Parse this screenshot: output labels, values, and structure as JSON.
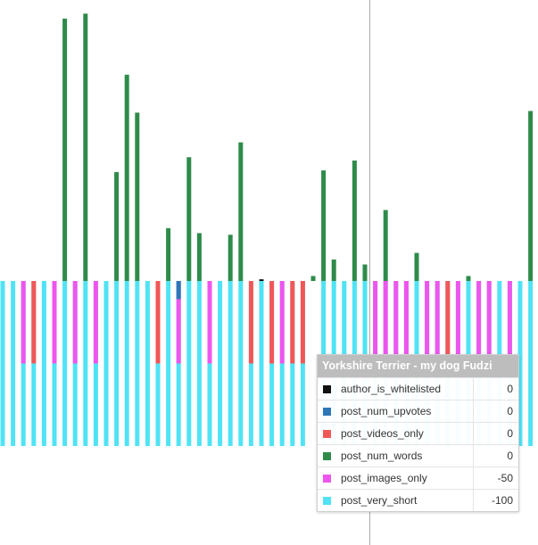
{
  "tooltip": {
    "title": "Yorkshire Terrier - my dog Fudzi",
    "rows": [
      {
        "label": "author_is_whitelisted",
        "value": "0",
        "color": "#111111"
      },
      {
        "label": "post_num_upvotes",
        "value": "0",
        "color": "#2d77b8"
      },
      {
        "label": "post_videos_only",
        "value": "0",
        "color": "#f25757"
      },
      {
        "label": "post_num_words",
        "value": "0",
        "color": "#2e8b4a"
      },
      {
        "label": "post_images_only",
        "value": "-50",
        "color": "#ee55ee"
      },
      {
        "label": "post_very_short",
        "value": "-100",
        "color": "#4fe3f5"
      }
    ]
  },
  "colors": {
    "author_is_whitelisted": "#111111",
    "post_num_upvotes": "#2d77b8",
    "post_videos_only": "#f25757",
    "post_num_words": "#2e8b4a",
    "post_images_only": "#ee55ee",
    "post_very_short": "#4fe3f5",
    "crosshair": "#aaaaaa"
  },
  "chart_data": {
    "type": "bar",
    "stacked": true,
    "baseline": 0,
    "grid": false,
    "legend": "none",
    "ylim": [
      -100,
      100
    ],
    "series_keys": [
      "post_very_short",
      "post_images_only",
      "post_videos_only",
      "post_num_words",
      "post_num_upvotes",
      "author_is_whitelisted"
    ],
    "bars": [
      {
        "post_very_short": -100,
        "post_images_only": 0,
        "post_videos_only": 0,
        "post_num_words": 0
      },
      {
        "post_very_short": -100,
        "post_images_only": 0,
        "post_videos_only": 0,
        "post_num_words": 0
      },
      {
        "post_very_short": -100,
        "post_images_only": -50,
        "post_videos_only": 0,
        "post_num_words": 0
      },
      {
        "post_very_short": -100,
        "post_images_only": 0,
        "post_videos_only": -50,
        "post_num_words": 0
      },
      {
        "post_very_short": -100,
        "post_images_only": 0,
        "post_videos_only": 0,
        "post_num_words": 0
      },
      {
        "post_very_short": -100,
        "post_images_only": -50,
        "post_videos_only": 0,
        "post_num_words": 0
      },
      {
        "post_very_short": -100,
        "post_images_only": 0,
        "post_videos_only": 0,
        "post_num_words": 159
      },
      {
        "post_very_short": -100,
        "post_images_only": -50,
        "post_videos_only": 0,
        "post_num_words": 0
      },
      {
        "post_very_short": -100,
        "post_images_only": 0,
        "post_videos_only": 0,
        "post_num_words": 162
      },
      {
        "post_very_short": -100,
        "post_images_only": -50,
        "post_videos_only": 0,
        "post_num_words": 0
      },
      {
        "post_very_short": -100,
        "post_images_only": 0,
        "post_videos_only": 0,
        "post_num_words": 0
      },
      {
        "post_very_short": -100,
        "post_images_only": 0,
        "post_videos_only": 0,
        "post_num_words": 66
      },
      {
        "post_very_short": -100,
        "post_images_only": 0,
        "post_videos_only": 0,
        "post_num_words": 125
      },
      {
        "post_very_short": -100,
        "post_images_only": 0,
        "post_videos_only": 0,
        "post_num_words": 102
      },
      {
        "post_very_short": -100,
        "post_images_only": 0,
        "post_videos_only": 0,
        "post_num_words": 0
      },
      {
        "post_very_short": -100,
        "post_images_only": 0,
        "post_videos_only": -50,
        "post_num_words": 0
      },
      {
        "post_very_short": -100,
        "post_images_only": 0,
        "post_videos_only": 0,
        "post_num_words": 32
      },
      {
        "post_very_short": -100,
        "post_images_only": -50,
        "post_videos_only": 0,
        "post_num_words": 0,
        "post_num_upvotes": -11
      },
      {
        "post_very_short": -100,
        "post_images_only": 0,
        "post_videos_only": 0,
        "post_num_words": 75
      },
      {
        "post_very_short": -100,
        "post_images_only": 0,
        "post_videos_only": 0,
        "post_num_words": 29
      },
      {
        "post_very_short": -100,
        "post_images_only": -50,
        "post_videos_only": 0,
        "post_num_words": 0
      },
      {
        "post_very_short": -100,
        "post_images_only": 0,
        "post_videos_only": 0,
        "post_num_words": 0
      },
      {
        "post_very_short": -100,
        "post_images_only": 0,
        "post_videos_only": 0,
        "post_num_words": 28
      },
      {
        "post_very_short": -100,
        "post_images_only": 0,
        "post_videos_only": 0,
        "post_num_words": 84
      },
      {
        "post_very_short": -100,
        "post_images_only": 0,
        "post_videos_only": -50,
        "post_num_words": 0
      },
      {
        "post_very_short": -100,
        "post_images_only": 0,
        "post_videos_only": 0,
        "post_num_words": 0,
        "author_is_whitelisted": 1
      },
      {
        "post_very_short": -100,
        "post_images_only": 0,
        "post_videos_only": -50,
        "post_num_words": 0
      },
      {
        "post_very_short": -100,
        "post_images_only": -50,
        "post_videos_only": 0,
        "post_num_words": 0
      },
      {
        "post_very_short": -100,
        "post_images_only": 0,
        "post_videos_only": -50,
        "post_num_words": 0
      },
      {
        "post_very_short": -100,
        "post_images_only": 0,
        "post_videos_only": -50,
        "post_num_words": 0
      },
      {
        "post_very_short": 0,
        "post_images_only": 0,
        "post_videos_only": 0,
        "post_num_words": 3
      },
      {
        "post_very_short": -100,
        "post_images_only": 0,
        "post_videos_only": 0,
        "post_num_words": 67
      },
      {
        "post_very_short": -100,
        "post_images_only": 0,
        "post_videos_only": 0,
        "post_num_words": 13
      },
      {
        "post_very_short": -100,
        "post_images_only": 0,
        "post_videos_only": 0,
        "post_num_words": 0
      },
      {
        "post_very_short": -100,
        "post_images_only": 0,
        "post_videos_only": 0,
        "post_num_words": 73
      },
      {
        "post_very_short": -100,
        "post_images_only": 0,
        "post_videos_only": 0,
        "post_num_words": 10
      },
      {
        "post_very_short": -100,
        "post_images_only": -50,
        "post_videos_only": 0,
        "post_num_words": 0
      },
      {
        "post_very_short": -100,
        "post_images_only": -50,
        "post_videos_only": 0,
        "post_num_words": 43
      },
      {
        "post_very_short": -100,
        "post_images_only": -50,
        "post_videos_only": 0,
        "post_num_words": 0
      },
      {
        "post_very_short": -100,
        "post_images_only": -50,
        "post_videos_only": 0,
        "post_num_words": 0
      },
      {
        "post_very_short": -100,
        "post_images_only": 0,
        "post_videos_only": 0,
        "post_num_words": 17
      },
      {
        "post_very_short": -100,
        "post_images_only": -50,
        "post_videos_only": 0,
        "post_num_words": 0
      },
      {
        "post_very_short": -100,
        "post_images_only": -50,
        "post_videos_only": 0,
        "post_num_words": 0
      },
      {
        "post_very_short": -100,
        "post_images_only": 0,
        "post_videos_only": -50,
        "post_num_words": 0
      },
      {
        "post_very_short": -100,
        "post_images_only": -50,
        "post_videos_only": 0,
        "post_num_words": 0
      },
      {
        "post_very_short": -100,
        "post_images_only": 0,
        "post_videos_only": 0,
        "post_num_words": 3
      },
      {
        "post_very_short": -100,
        "post_images_only": -50,
        "post_videos_only": 0,
        "post_num_words": 0
      },
      {
        "post_very_short": -100,
        "post_images_only": -50,
        "post_videos_only": 0,
        "post_num_words": 0
      },
      {
        "post_very_short": -100,
        "post_images_only": 0,
        "post_videos_only": 0,
        "post_num_words": 0
      },
      {
        "post_very_short": -100,
        "post_images_only": -50,
        "post_videos_only": 0,
        "post_num_words": 0
      },
      {
        "post_very_short": -100,
        "post_images_only": 0,
        "post_videos_only": 0,
        "post_num_words": 0
      },
      {
        "post_very_short": -100,
        "post_images_only": 0,
        "post_videos_only": 0,
        "post_num_words": 103
      },
      {
        "post_very_short": -100,
        "post_images_only": -50,
        "post_videos_only": 0,
        "post_num_words": 0
      }
    ]
  }
}
